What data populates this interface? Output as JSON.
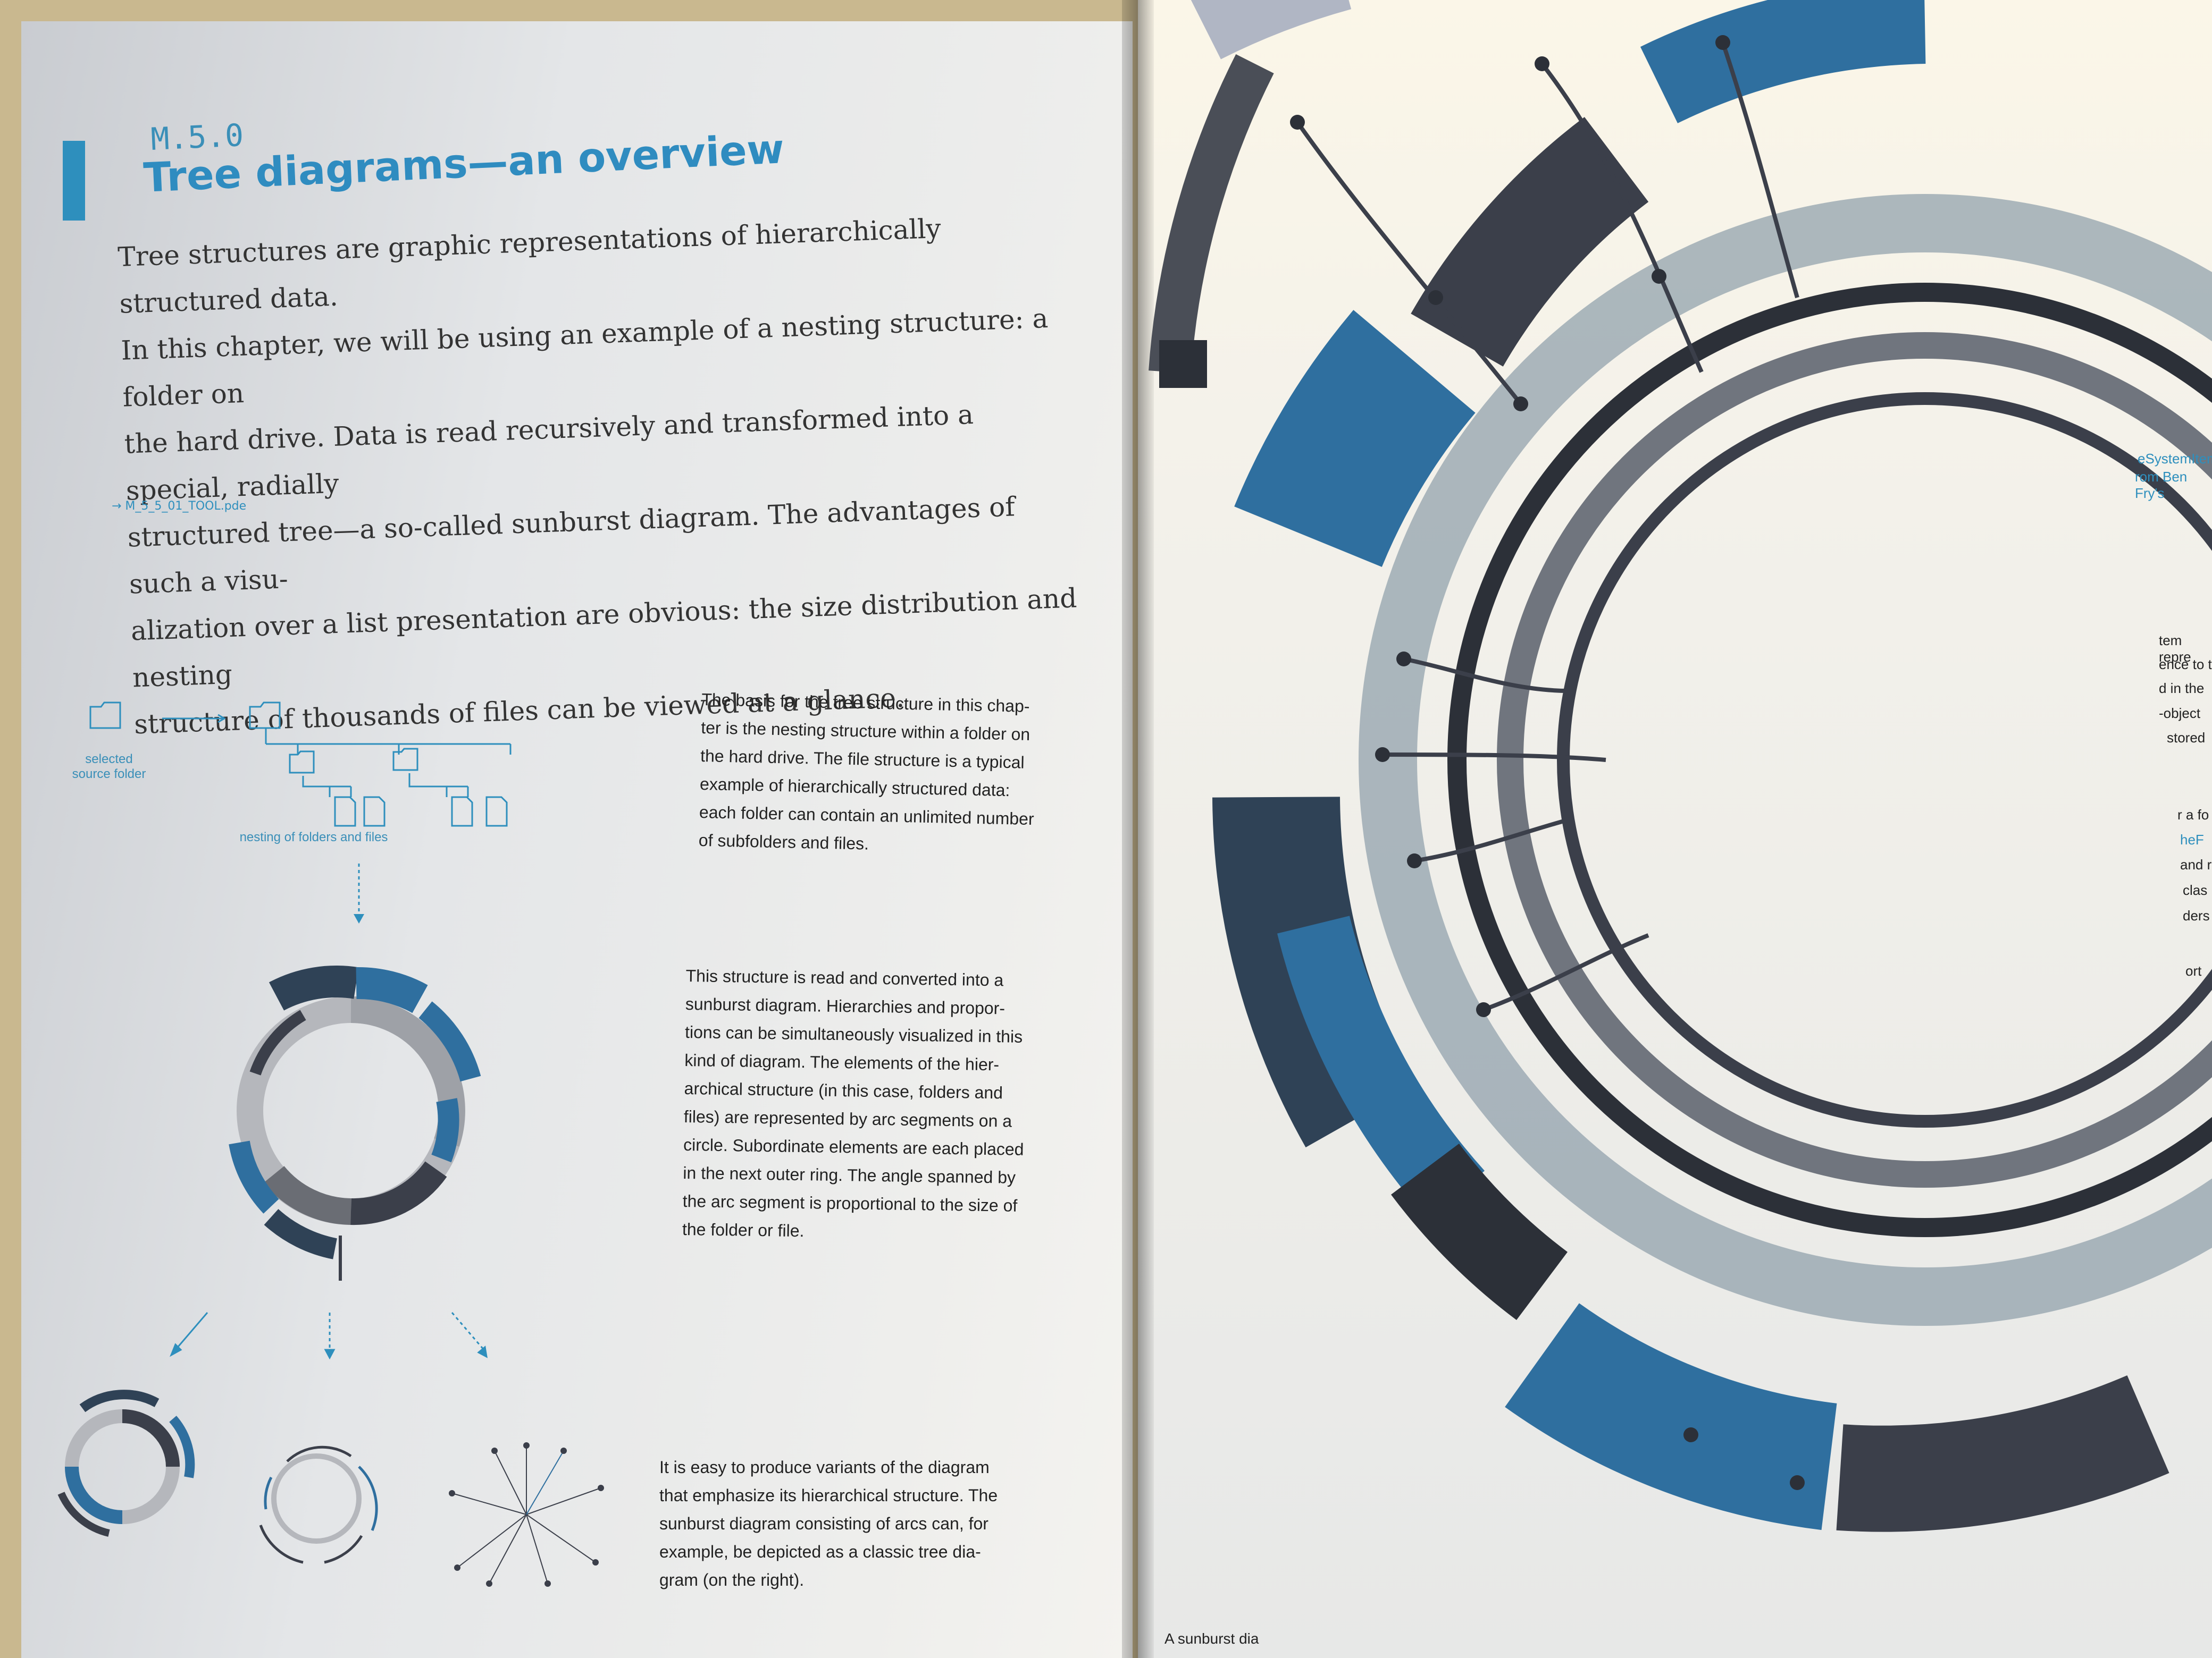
{
  "left_page": {
    "section_code": "M.5.0",
    "section_title": "Tree diagrams—an overview",
    "intro_lines": [
      "Tree structures are graphic representations of hierarchically structured data.",
      "In this chapter, we will be using an example of a nesting structure: a folder on",
      "the hard drive. Data is read recursively and transformed into a special, radially",
      "structured tree—a so-called sunburst diagram. The advantages of such a visu-",
      "alization over a list presentation are obvious: the size distribution and nesting",
      "structure of thousands of files can be viewed at a glance."
    ],
    "tool_reference": "→ M_5_5_01_TOOL.pde",
    "figure_labels": {
      "selected_source_folder": "selected\nsource folder",
      "nesting": "nesting of folders and files"
    },
    "paragraph_1": "The basis for the tree structure in this chap-\nter is the nesting structure within a folder on\nthe hard drive. The file structure is a typical\nexample of hierarchically structured data:\neach folder can contain an unlimited number\nof subfolders and files.",
    "paragraph_2": "This structure is read and converted into a\nsunburst diagram. Hierarchies and propor-\ntions can be simultaneously visualized in this\nkind of diagram. The elements of the hier-\narchical structure (in this case, folders and\nfiles) are represented by arc segments on a\ncircle. Subordinate elements are each placed\nin the next outer ring. The angle spanned by\nthe arc segment is proportional to the size of\nthe folder or file.",
    "paragraph_3": "It is easy to produce variants of the diagram\nthat emphasize its hierarchical structure. The\nsunburst diagram consisting of arcs can, for\nexample, be depicted as a classic tree dia-\ngram (on the right)."
  },
  "right_page": {
    "caption": "A sunburst dia",
    "margin_fragments": [
      "eSystemItem",
      "rom Ben Fry's",
      "tem repre",
      "ence to t",
      "d in the",
      "-object",
      "stored",
      "r a fo",
      "heF",
      "and r",
      "clas",
      "ders",
      "ort"
    ]
  },
  "colors": {
    "accent_blue": "#2e8fbd",
    "steel_blue": "#2f6f9f",
    "dark_slate": "#3b3f4a",
    "gray": "#8a8d93",
    "light_gray": "#b9bcc2"
  }
}
